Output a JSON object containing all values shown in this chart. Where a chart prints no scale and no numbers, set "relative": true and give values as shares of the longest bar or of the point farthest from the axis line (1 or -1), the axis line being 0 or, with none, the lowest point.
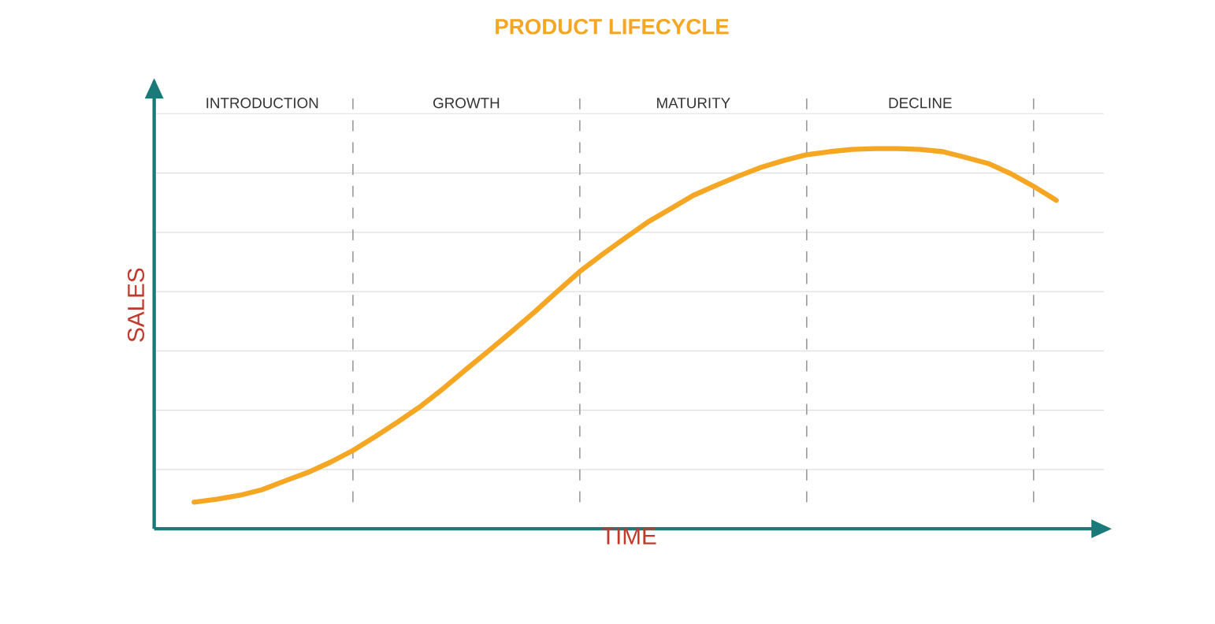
{
  "chart_data": {
    "type": "line",
    "title": "PRODUCT LIFECYCLE",
    "xlabel": "TIME",
    "ylabel": "SALES",
    "relative": true,
    "grid": true,
    "categories": [
      null,
      null,
      null,
      "INTRODUCTION",
      null,
      null,
      null,
      null,
      null,
      null,
      null,
      null,
      "GROWTH",
      null,
      null,
      null,
      null,
      null,
      null,
      null,
      null,
      null,
      "MATURITY",
      null,
      null,
      null,
      null,
      null,
      null,
      null,
      null,
      null,
      "DECLINE",
      null,
      null,
      null,
      null,
      null,
      null
    ],
    "series": [
      {
        "color": "#f5a623",
        "values": [
          0.07,
          0.078,
          0.088,
          0.103,
          0.126,
          0.148,
          0.175,
          0.206,
          0.243,
          0.282,
          0.323,
          0.37,
          0.42,
          0.469,
          0.519,
          0.57,
          0.624,
          0.677,
          0.722,
          0.765,
          0.807,
          0.842,
          0.877,
          0.903,
          0.928,
          0.951,
          0.969,
          0.984,
          0.992,
          0.998,
          1,
          1,
          0.998,
          0.992,
          0.977,
          0.961,
          0.934,
          0.901,
          0.864
        ]
      }
    ]
  }
}
